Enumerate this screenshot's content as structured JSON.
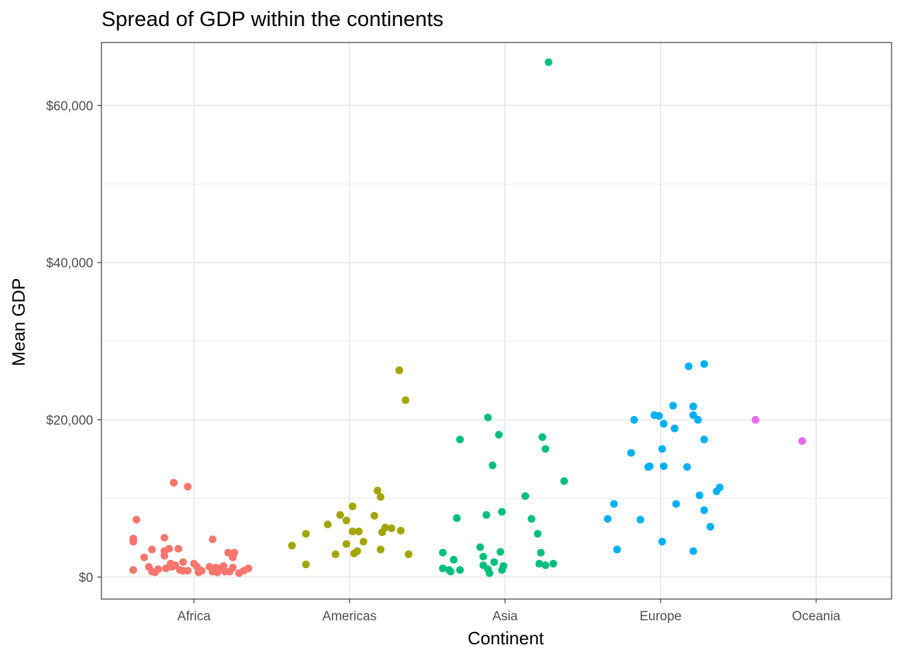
{
  "chart_data": {
    "type": "scatter",
    "title": "Spread of GDP within the continents",
    "xlabel": "Continent",
    "ylabel": "Mean GDP",
    "categories": [
      "Africa",
      "Americas",
      "Asia",
      "Europe",
      "Oceania"
    ],
    "ylim": [
      -2800,
      68000
    ],
    "yticks": [
      0,
      20000,
      40000,
      60000
    ],
    "ytick_labels": [
      "$0",
      "$20,000",
      "$40,000",
      "$60,000"
    ],
    "grid": true,
    "legend": "none",
    "series": [
      {
        "category": "Africa",
        "color": "#F8766D",
        "points": [
          {
            "x": -0.39,
            "y": 4500
          },
          {
            "x": -0.39,
            "y": 4900
          },
          {
            "x": -0.37,
            "y": 7300
          },
          {
            "x": -0.39,
            "y": 900
          },
          {
            "x": -0.32,
            "y": 2500
          },
          {
            "x": -0.29,
            "y": 1300
          },
          {
            "x": -0.27,
            "y": 700
          },
          {
            "x": -0.27,
            "y": 3500
          },
          {
            "x": -0.25,
            "y": 600
          },
          {
            "x": -0.23,
            "y": 1000
          },
          {
            "x": -0.19,
            "y": 5000
          },
          {
            "x": -0.19,
            "y": 3300
          },
          {
            "x": -0.19,
            "y": 2700
          },
          {
            "x": -0.18,
            "y": 1100
          },
          {
            "x": -0.16,
            "y": 3600
          },
          {
            "x": -0.15,
            "y": 1700
          },
          {
            "x": -0.14,
            "y": 1300
          },
          {
            "x": -0.13,
            "y": 12000
          },
          {
            "x": -0.12,
            "y": 1500
          },
          {
            "x": -0.1,
            "y": 3600
          },
          {
            "x": -0.09,
            "y": 900
          },
          {
            "x": -0.07,
            "y": 1900
          },
          {
            "x": -0.07,
            "y": 800
          },
          {
            "x": -0.04,
            "y": 800
          },
          {
            "x": -0.04,
            "y": 11500
          },
          {
            "x": 0.0,
            "y": 1700
          },
          {
            "x": 0.02,
            "y": 1300
          },
          {
            "x": 0.03,
            "y": 600
          },
          {
            "x": 0.05,
            "y": 800
          },
          {
            "x": 0.1,
            "y": 1300
          },
          {
            "x": 0.12,
            "y": 4800
          },
          {
            "x": 0.12,
            "y": 700
          },
          {
            "x": 0.14,
            "y": 1200
          },
          {
            "x": 0.15,
            "y": 600
          },
          {
            "x": 0.17,
            "y": 1100
          },
          {
            "x": 0.19,
            "y": 1400
          },
          {
            "x": 0.2,
            "y": 700
          },
          {
            "x": 0.22,
            "y": 3100
          },
          {
            "x": 0.23,
            "y": 700
          },
          {
            "x": 0.25,
            "y": 1200
          },
          {
            "x": 0.25,
            "y": 2500
          },
          {
            "x": 0.26,
            "y": 3100
          },
          {
            "x": 0.29,
            "y": 500
          },
          {
            "x": 0.32,
            "y": 800
          },
          {
            "x": 0.35,
            "y": 1100
          }
        ]
      },
      {
        "category": "Americas",
        "color": "#A3A500",
        "points": [
          {
            "x": -0.37,
            "y": 4000
          },
          {
            "x": -0.28,
            "y": 1600
          },
          {
            "x": -0.28,
            "y": 5500
          },
          {
            "x": -0.14,
            "y": 6700
          },
          {
            "x": -0.09,
            "y": 2900
          },
          {
            "x": -0.06,
            "y": 7900
          },
          {
            "x": -0.02,
            "y": 7200
          },
          {
            "x": -0.02,
            "y": 4200
          },
          {
            "x": 0.02,
            "y": 9000
          },
          {
            "x": 0.02,
            "y": 5800
          },
          {
            "x": 0.03,
            "y": 3000
          },
          {
            "x": 0.05,
            "y": 3300
          },
          {
            "x": 0.06,
            "y": 5800
          },
          {
            "x": 0.09,
            "y": 4500
          },
          {
            "x": 0.16,
            "y": 7800
          },
          {
            "x": 0.18,
            "y": 11000
          },
          {
            "x": 0.2,
            "y": 3500
          },
          {
            "x": 0.2,
            "y": 10200
          },
          {
            "x": 0.21,
            "y": 5700
          },
          {
            "x": 0.23,
            "y": 6300
          },
          {
            "x": 0.27,
            "y": 6200
          },
          {
            "x": 0.32,
            "y": 26300
          },
          {
            "x": 0.33,
            "y": 5900
          },
          {
            "x": 0.36,
            "y": 22500
          },
          {
            "x": 0.38,
            "y": 2900
          }
        ]
      },
      {
        "category": "Asia",
        "color": "#00BF7D",
        "points": [
          {
            "x": -0.4,
            "y": 3100
          },
          {
            "x": -0.4,
            "y": 1100
          },
          {
            "x": -0.36,
            "y": 900
          },
          {
            "x": -0.35,
            "y": 700
          },
          {
            "x": -0.33,
            "y": 2200
          },
          {
            "x": -0.31,
            "y": 7500
          },
          {
            "x": -0.29,
            "y": 17500
          },
          {
            "x": -0.29,
            "y": 900
          },
          {
            "x": -0.16,
            "y": 3800
          },
          {
            "x": -0.14,
            "y": 2600
          },
          {
            "x": -0.14,
            "y": 1500
          },
          {
            "x": -0.12,
            "y": 7900
          },
          {
            "x": -0.11,
            "y": 20300
          },
          {
            "x": -0.11,
            "y": 1000
          },
          {
            "x": -0.1,
            "y": 500
          },
          {
            "x": -0.08,
            "y": 14200
          },
          {
            "x": -0.07,
            "y": 1900
          },
          {
            "x": -0.04,
            "y": 18100
          },
          {
            "x": -0.03,
            "y": 3200
          },
          {
            "x": -0.02,
            "y": 8300
          },
          {
            "x": -0.02,
            "y": 900
          },
          {
            "x": -0.01,
            "y": 1400
          },
          {
            "x": 0.13,
            "y": 10300
          },
          {
            "x": 0.17,
            "y": 7400
          },
          {
            "x": 0.21,
            "y": 5500
          },
          {
            "x": 0.22,
            "y": 1700
          },
          {
            "x": 0.23,
            "y": 3100
          },
          {
            "x": 0.24,
            "y": 17800
          },
          {
            "x": 0.26,
            "y": 16300
          },
          {
            "x": 0.26,
            "y": 1500
          },
          {
            "x": 0.28,
            "y": 65500
          },
          {
            "x": 0.31,
            "y": 1700
          },
          {
            "x": 0.38,
            "y": 12200
          }
        ]
      },
      {
        "category": "Europe",
        "color": "#00B0F6",
        "points": [
          {
            "x": -0.34,
            "y": 7400
          },
          {
            "x": -0.3,
            "y": 9300
          },
          {
            "x": -0.28,
            "y": 3500
          },
          {
            "x": -0.19,
            "y": 15800
          },
          {
            "x": -0.17,
            "y": 20000
          },
          {
            "x": -0.13,
            "y": 7300
          },
          {
            "x": -0.08,
            "y": 14000
          },
          {
            "x": -0.07,
            "y": 14100
          },
          {
            "x": -0.04,
            "y": 20600
          },
          {
            "x": -0.01,
            "y": 20500
          },
          {
            "x": 0.01,
            "y": 4500
          },
          {
            "x": 0.01,
            "y": 16300
          },
          {
            "x": 0.02,
            "y": 19500
          },
          {
            "x": 0.02,
            "y": 14100
          },
          {
            "x": 0.08,
            "y": 21800
          },
          {
            "x": 0.09,
            "y": 18900
          },
          {
            "x": 0.1,
            "y": 9300
          },
          {
            "x": 0.17,
            "y": 14000
          },
          {
            "x": 0.18,
            "y": 26800
          },
          {
            "x": 0.21,
            "y": 3300
          },
          {
            "x": 0.21,
            "y": 20600
          },
          {
            "x": 0.21,
            "y": 21700
          },
          {
            "x": 0.24,
            "y": 20000
          },
          {
            "x": 0.25,
            "y": 10400
          },
          {
            "x": 0.28,
            "y": 8500
          },
          {
            "x": 0.28,
            "y": 17500
          },
          {
            "x": 0.28,
            "y": 27100
          },
          {
            "x": 0.32,
            "y": 6400
          },
          {
            "x": 0.36,
            "y": 10900
          },
          {
            "x": 0.38,
            "y": 11400
          }
        ]
      },
      {
        "category": "Oceania",
        "color": "#E76BF3",
        "points": [
          {
            "x": -0.39,
            "y": 20000
          },
          {
            "x": -0.09,
            "y": 17300
          }
        ]
      }
    ]
  }
}
